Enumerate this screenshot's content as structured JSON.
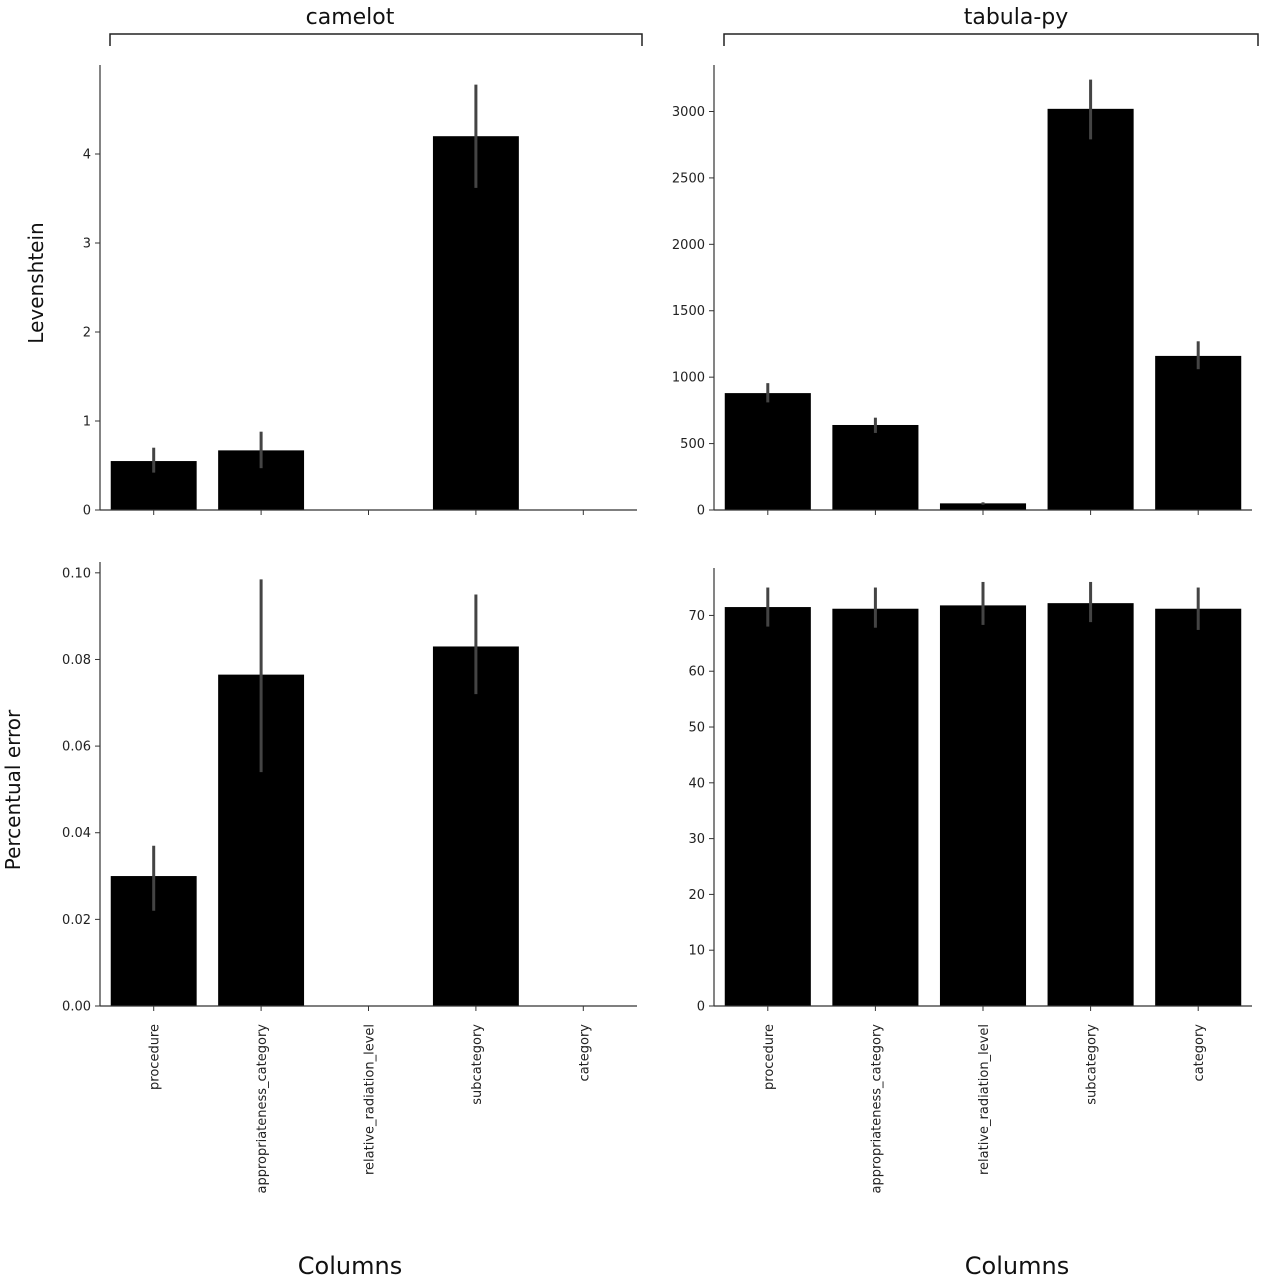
{
  "figure": {
    "groups": [
      "camelot",
      "tabula-py"
    ],
    "xlabel": "Columns",
    "ylabels": [
      "Levenshtein",
      "Percentual error"
    ],
    "colors": {
      "bar": "#000000",
      "errorbar": "#444444",
      "axis": "#333333"
    }
  },
  "chart_data": [
    {
      "type": "bar",
      "group": "camelot",
      "categories": [
        "procedure",
        "appropriateness_category",
        "relative_radiation_level",
        "subcategory",
        "category"
      ],
      "values": [
        0.55,
        0.67,
        0,
        4.2,
        0
      ],
      "error_low": [
        0.42,
        0.47,
        0,
        3.62,
        0
      ],
      "error_high": [
        0.7,
        0.88,
        0,
        4.78,
        0
      ],
      "ylabel": "Levenshtein",
      "ylim": [
        0,
        5
      ],
      "yticks": [
        0,
        1,
        2,
        3,
        4
      ],
      "ytick_labels": [
        "0",
        "1",
        "2",
        "3",
        "4"
      ]
    },
    {
      "type": "bar",
      "group": "tabula-py",
      "categories": [
        "procedure",
        "appropriateness_category",
        "relative_radiation_level",
        "subcategory",
        "category"
      ],
      "values": [
        880,
        640,
        50,
        3020,
        1160
      ],
      "error_low": [
        810,
        580,
        40,
        2790,
        1060
      ],
      "error_high": [
        955,
        695,
        58,
        3240,
        1270
      ],
      "ylabel": "",
      "ylim": [
        0,
        3350
      ],
      "yticks": [
        0,
        500,
        1000,
        1500,
        2000,
        2500,
        3000
      ],
      "ytick_labels": [
        "0",
        "500",
        "1000",
        "1500",
        "2000",
        "2500",
        "3000"
      ]
    },
    {
      "type": "bar",
      "group": "camelot",
      "categories": [
        "procedure",
        "appropriateness_category",
        "relative_radiation_level",
        "subcategory",
        "category"
      ],
      "values": [
        0.03,
        0.0765,
        0,
        0.083,
        0
      ],
      "error_low": [
        0.022,
        0.054,
        0,
        0.072,
        0
      ],
      "error_high": [
        0.037,
        0.0985,
        0,
        0.095,
        0
      ],
      "ylabel": "Percentual error",
      "ylim": [
        0,
        0.1025
      ],
      "yticks": [
        0,
        0.02,
        0.04,
        0.06,
        0.08,
        0.1
      ],
      "ytick_labels": [
        "0.00",
        "0.02",
        "0.04",
        "0.06",
        "0.08",
        "0.10"
      ],
      "xlabel": "Columns"
    },
    {
      "type": "bar",
      "group": "tabula-py",
      "categories": [
        "procedure",
        "appropriateness_category",
        "relative_radiation_level",
        "subcategory",
        "category"
      ],
      "values": [
        71.5,
        71.2,
        71.8,
        72.2,
        71.2
      ],
      "error_low": [
        68,
        67.8,
        68.3,
        68.8,
        67.4
      ],
      "error_high": [
        75,
        75,
        76,
        76,
        75
      ],
      "ylabel": "",
      "ylim": [
        0,
        78.5
      ],
      "yticks": [
        0,
        10,
        20,
        30,
        40,
        50,
        60,
        70
      ],
      "ytick_labels": [
        "0",
        "10",
        "20",
        "30",
        "40",
        "50",
        "60",
        "70"
      ],
      "xlabel": "Columns"
    }
  ]
}
